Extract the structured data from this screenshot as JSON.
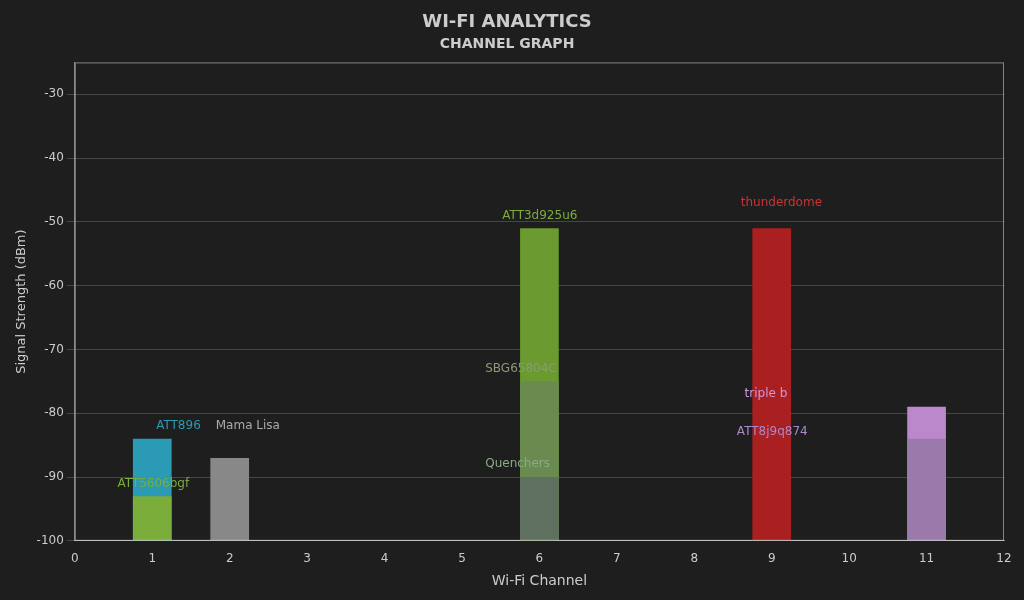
{
  "chart_data": {
    "type": "bar",
    "title": "WI-FI ANALYTICS",
    "subtitle": "CHANNEL GRAPH",
    "xlabel": "Wi-Fi Channel",
    "ylabel": "Signal Strength (dBm)",
    "x": [
      1,
      6,
      2,
      1,
      11,
      11,
      6,
      6,
      9
    ],
    "values": [
      -93,
      -90,
      -87,
      -84,
      -84,
      -79,
      -75,
      -51,
      -51
    ],
    "colors": [
      "#7aad3a",
      "#607060",
      "#888888",
      "#2a9ab5",
      "#9a7aaa",
      "#bb88cc",
      "#6a8a50",
      "#6a9a30",
      "#aa2020"
    ],
    "xlim": [
      0,
      12
    ],
    "xticks": [
      0,
      1,
      2,
      3,
      4,
      5,
      6,
      7,
      8,
      9,
      10,
      11,
      12
    ],
    "ylim": [
      -100,
      -25
    ],
    "yticks": [
      -30,
      -40,
      -50,
      -60,
      -70,
      -80,
      -90,
      -100
    ],
    "grid": "y",
    "annotations": [
      {
        "text": "ATT5606bgf",
        "x": 0.55,
        "y": -91,
        "color": "#7aad3a"
      },
      {
        "text": "ATT896",
        "x": 1.05,
        "y": -82,
        "color": "#2a9ab5"
      },
      {
        "text": "Mama Lisa",
        "x": 1.82,
        "y": -82,
        "color": "#aaaaaa"
      },
      {
        "text": "ATT3d925u6",
        "x": 5.52,
        "y": -49,
        "color": "#7aad3a"
      },
      {
        "text": "SBG65804C",
        "x": 5.3,
        "y": -73,
        "color": "#8a9a7a"
      },
      {
        "text": "Quenchers",
        "x": 5.3,
        "y": -88,
        "color": "#8aaa8a"
      },
      {
        "text": "thunderdome",
        "x": 8.6,
        "y": -47,
        "color": "#cc3333"
      },
      {
        "text": "ATT8j9q874",
        "x": 8.55,
        "y": -83,
        "color": "#aa88cc"
      },
      {
        "text": "triple b",
        "x": 8.65,
        "y": -77,
        "color": "#cc99dd"
      }
    ]
  }
}
